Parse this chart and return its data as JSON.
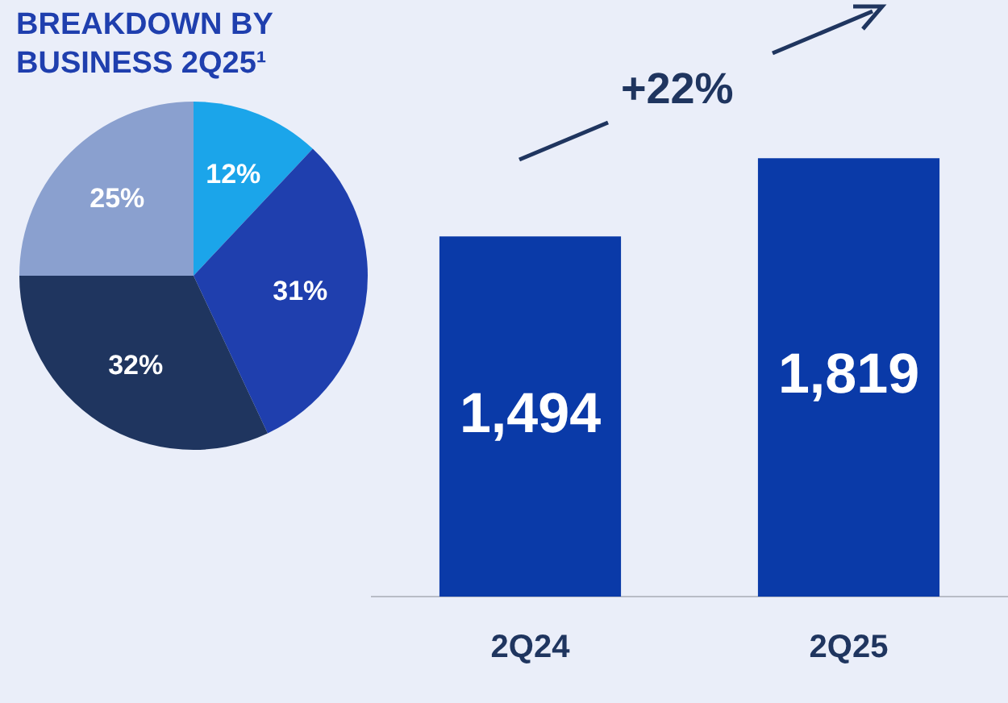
{
  "chart_data": [
    {
      "type": "pie",
      "title": "BREAKDOWN BY BUSINESS 2Q25¹",
      "categories": [
        null,
        null,
        null,
        null
      ],
      "values": [
        12,
        31,
        32,
        25
      ],
      "value_labels": [
        "12%",
        "31%",
        "32%",
        "25%"
      ],
      "colors": [
        "#1ba5ea",
        "#1f3fae",
        "#1f355f",
        "#8aa0cf"
      ],
      "legend": false
    },
    {
      "type": "bar",
      "categories": [
        "2Q24",
        "2Q25"
      ],
      "values": [
        1494,
        1819
      ],
      "value_labels": [
        "1,494",
        "1,819"
      ],
      "color": "#0a3aa8",
      "tick_labels": "x",
      "legend": false,
      "annotations": [
        "+22%"
      ]
    }
  ]
}
